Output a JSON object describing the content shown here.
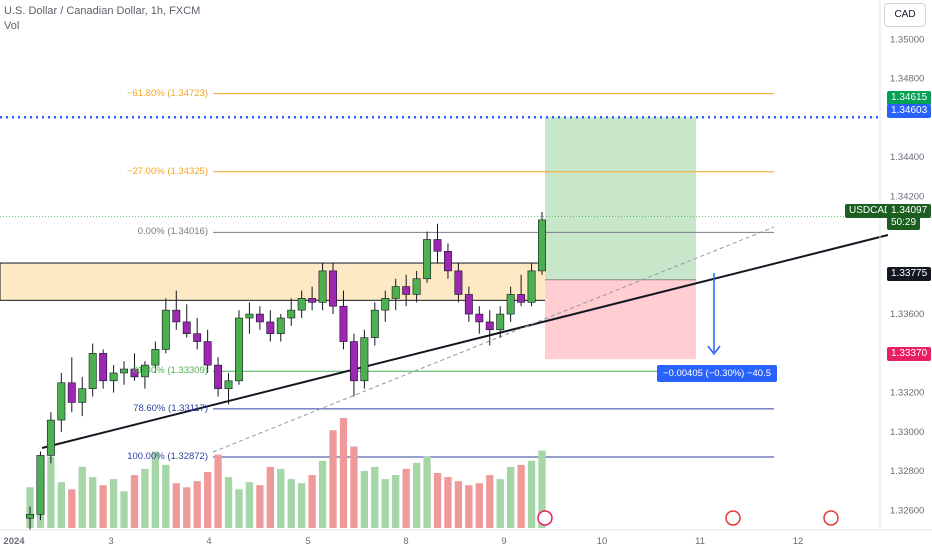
{
  "header": {
    "symbol_line": "U.S. Dollar / Canadian Dollar, 1h, FXCM",
    "vol_label": "Vol",
    "currency_button": "CAD"
  },
  "colors": {
    "up": "#26a69a",
    "down": "#ef5350",
    "up_body": "#4caf50",
    "down_body": "#9c27b0",
    "fib_orange": "#f5a623",
    "fib_green": "#4caf50",
    "fib_navy": "#303f9f",
    "target_blue": "#2962ff",
    "profit_zone": "#c8e6c9",
    "loss_zone": "#ffcdd2",
    "supply_zone": "#fde9c4"
  },
  "price_axis": {
    "ticks": [
      "1.35000",
      "1.34800",
      "1.34400",
      "1.34200",
      "1.33600",
      "1.33200",
      "1.33000",
      "1.32800",
      "1.32600"
    ],
    "tags": {
      "target_green": "1.34615",
      "target_blue": "1.34603",
      "symbol": "USDCAD",
      "last_price": "1.34097",
      "countdown": "50:29",
      "entry": "1.33775",
      "stop": "1.33370"
    }
  },
  "time_axis": {
    "labels": [
      "2024",
      "3",
      "4",
      "5",
      "8",
      "9",
      "10",
      "11",
      "12"
    ]
  },
  "fib_levels": [
    {
      "label": "−61.80% (1.34723)",
      "price": 1.34723
    },
    {
      "label": "−27.00% (1.34325)",
      "price": 1.34325
    },
    {
      "label": "0.00% (1.34016)",
      "price": 1.34016
    },
    {
      "label": "61.80% (1.33309)",
      "price": 1.33309
    },
    {
      "label": "78.60% (1.33117)",
      "price": 1.33117
    },
    {
      "label": "100.00% (1.32872)",
      "price": 1.32872
    }
  ],
  "measure_label": "−0.00405 (−0.30%) −40.5",
  "chart_data": {
    "type": "candlestick",
    "title": "U.S. Dollar / Canadian Dollar, 1h, FXCM",
    "ylim": [
      1.325,
      1.352
    ],
    "price_levels": {
      "target": 1.34603,
      "entry": 1.33775,
      "stop": 1.3337,
      "last": 1.34097,
      "supply_zone": [
        1.3367,
        1.3386
      ]
    },
    "ohlc_series": [
      [
        1.3256,
        1.3262,
        1.325,
        1.3258
      ],
      [
        1.3258,
        1.329,
        1.3255,
        1.3288
      ],
      [
        1.3288,
        1.331,
        1.3284,
        1.3306
      ],
      [
        1.3306,
        1.333,
        1.33,
        1.3325
      ],
      [
        1.3325,
        1.3338,
        1.331,
        1.3315
      ],
      [
        1.3315,
        1.3328,
        1.3308,
        1.3322
      ],
      [
        1.3322,
        1.3345,
        1.3318,
        1.334
      ],
      [
        1.334,
        1.3342,
        1.3322,
        1.3326
      ],
      [
        1.3326,
        1.3334,
        1.332,
        1.333
      ],
      [
        1.333,
        1.3336,
        1.3324,
        1.3332
      ],
      [
        1.3332,
        1.334,
        1.3326,
        1.3328
      ],
      [
        1.3328,
        1.3336,
        1.3322,
        1.3334
      ],
      [
        1.3334,
        1.3346,
        1.333,
        1.3342
      ],
      [
        1.3342,
        1.3368,
        1.334,
        1.3362
      ],
      [
        1.3362,
        1.3372,
        1.3352,
        1.3356
      ],
      [
        1.3356,
        1.3365,
        1.3348,
        1.335
      ],
      [
        1.335,
        1.3358,
        1.3342,
        1.3346
      ],
      [
        1.3346,
        1.3352,
        1.333,
        1.3334
      ],
      [
        1.3334,
        1.3338,
        1.3318,
        1.3322
      ],
      [
        1.3322,
        1.333,
        1.3314,
        1.3326
      ],
      [
        1.3326,
        1.3362,
        1.3324,
        1.3358
      ],
      [
        1.3358,
        1.3366,
        1.335,
        1.336
      ],
      [
        1.336,
        1.3364,
        1.3352,
        1.3356
      ],
      [
        1.3356,
        1.3362,
        1.3346,
        1.335
      ],
      [
        1.335,
        1.336,
        1.3346,
        1.3358
      ],
      [
        1.3358,
        1.3368,
        1.3354,
        1.3362
      ],
      [
        1.3362,
        1.3372,
        1.3358,
        1.3368
      ],
      [
        1.3368,
        1.3374,
        1.3362,
        1.3366
      ],
      [
        1.3366,
        1.3386,
        1.3362,
        1.3382
      ],
      [
        1.3382,
        1.3386,
        1.336,
        1.3364
      ],
      [
        1.3364,
        1.3372,
        1.3342,
        1.3346
      ],
      [
        1.3346,
        1.335,
        1.3318,
        1.3326
      ],
      [
        1.3326,
        1.3352,
        1.3322,
        1.3348
      ],
      [
        1.3348,
        1.3366,
        1.3344,
        1.3362
      ],
      [
        1.3362,
        1.3372,
        1.3356,
        1.3368
      ],
      [
        1.3368,
        1.3378,
        1.3362,
        1.3374
      ],
      [
        1.3374,
        1.338,
        1.3364,
        1.337
      ],
      [
        1.337,
        1.3382,
        1.3366,
        1.3378
      ],
      [
        1.3378,
        1.3402,
        1.3376,
        1.3398
      ],
      [
        1.3398,
        1.3406,
        1.3386,
        1.3392
      ],
      [
        1.3392,
        1.3396,
        1.3378,
        1.3382
      ],
      [
        1.3382,
        1.3386,
        1.3366,
        1.337
      ],
      [
        1.337,
        1.3374,
        1.3356,
        1.336
      ],
      [
        1.336,
        1.3364,
        1.335,
        1.3356
      ],
      [
        1.3356,
        1.3362,
        1.3344,
        1.3352
      ],
      [
        1.3352,
        1.3364,
        1.3348,
        1.336
      ],
      [
        1.336,
        1.3374,
        1.3356,
        1.337
      ],
      [
        1.337,
        1.338,
        1.3364,
        1.3366
      ],
      [
        1.3366,
        1.3386,
        1.3364,
        1.3382
      ],
      [
        1.3382,
        1.3412,
        1.338,
        1.3408
      ]
    ],
    "volume": [
      40,
      55,
      70,
      45,
      38,
      60,
      50,
      42,
      48,
      36,
      52,
      58,
      75,
      62,
      44,
      40,
      46,
      55,
      72,
      50,
      38,
      45,
      42,
      60,
      58,
      48,
      44,
      52,
      66,
      96,
      108,
      80,
      56,
      60,
      48,
      52,
      58,
      64,
      70,
      54,
      50,
      46,
      42,
      44,
      52,
      48,
      60,
      62,
      66,
      76
    ]
  }
}
